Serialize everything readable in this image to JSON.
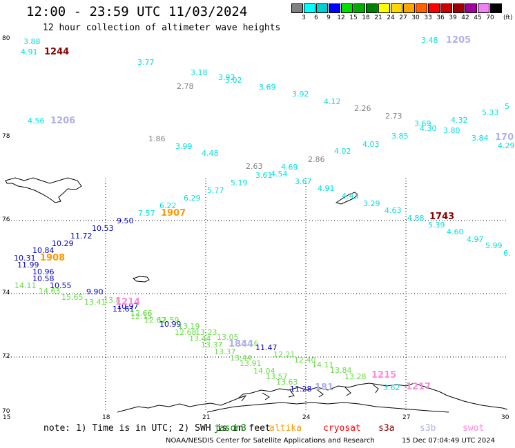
{
  "header": {
    "title": "12:00 - 23:59 UTC 11/03/2024",
    "subtitle": "12 hour collection of altimeter wave heights"
  },
  "color_scale": {
    "unit": "(ft)",
    "labels": [
      "3",
      "6",
      "9",
      "12",
      "15",
      "18",
      "21",
      "24",
      "27",
      "30",
      "33",
      "36",
      "39",
      "42",
      "45",
      "70"
    ],
    "colors": [
      "#808080",
      "#00ffff",
      "#00cdcd",
      "#0000ff",
      "#00dd00",
      "#00aa00",
      "#008000",
      "#ffff00",
      "#ffd700",
      "#ffa500",
      "#ff6000",
      "#ff0000",
      "#cd0000",
      "#a00000",
      "#a000a0",
      "#ee82ee",
      "#000000"
    ]
  },
  "axes": {
    "lat_labels": [
      "80",
      "78",
      "76",
      "74",
      "72",
      "70"
    ],
    "lon_labels": [
      "15",
      "18",
      "21",
      "24",
      "27",
      "30"
    ]
  },
  "observations": [
    {
      "v": "3.88",
      "c": "#00e0e0"
    },
    {
      "v": "4.91",
      "c": "#00e0e0"
    },
    {
      "v": "3.77",
      "c": "#00e0e0"
    },
    {
      "v": "3.18",
      "c": "#00e0e0"
    },
    {
      "v": "3.92",
      "c": "#00e0e0"
    },
    {
      "v": "3.02",
      "c": "#00e0e0"
    },
    {
      "v": "2.78",
      "c": "#808080"
    },
    {
      "v": "3.69",
      "c": "#00e0e0"
    },
    {
      "v": "3.92",
      "c": "#00e0e0"
    },
    {
      "v": "4.12",
      "c": "#00e0e0"
    },
    {
      "v": "2.26",
      "c": "#808080"
    },
    {
      "v": "2.73",
      "c": "#808080"
    },
    {
      "v": "3.48",
      "c": "#00e0e0"
    },
    {
      "v": "3.69",
      "c": "#00e0e0"
    },
    {
      "v": "4.30",
      "c": "#00e0e0"
    },
    {
      "v": "3.80",
      "c": "#00e0e0"
    },
    {
      "v": "4.32",
      "c": "#00e0e0"
    },
    {
      "v": "5.33",
      "c": "#00e0e0"
    },
    {
      "v": "5",
      "c": "#00e0e0"
    },
    {
      "v": "4.56",
      "c": "#00e0e0"
    },
    {
      "v": "1.86",
      "c": "#808080"
    },
    {
      "v": "3.99",
      "c": "#00e0e0"
    },
    {
      "v": "4.48",
      "c": "#00e0e0"
    },
    {
      "v": "4.02",
      "c": "#00e0e0"
    },
    {
      "v": "4.03",
      "c": "#00e0e0"
    },
    {
      "v": "3.85",
      "c": "#00e0e0"
    },
    {
      "v": "3.84",
      "c": "#00e0e0"
    },
    {
      "v": "4.29",
      "c": "#00e0e0"
    },
    {
      "v": "2.63",
      "c": "#808080"
    },
    {
      "v": "2.86",
      "c": "#808080"
    },
    {
      "v": "4.69",
      "c": "#00e0e0"
    },
    {
      "v": "3.61",
      "c": "#00e0e0"
    },
    {
      "v": "4.54",
      "c": "#00e0e0"
    },
    {
      "v": "5.19",
      "c": "#00e0e0"
    },
    {
      "v": "3.67",
      "c": "#00e0e0"
    },
    {
      "v": "5.77",
      "c": "#00e0e0"
    },
    {
      "v": "4.91",
      "c": "#00e0e0"
    },
    {
      "v": "4.43",
      "c": "#00e0e0"
    },
    {
      "v": "6.29",
      "c": "#00e0e0"
    },
    {
      "v": "6.22",
      "c": "#00e0e0"
    },
    {
      "v": "3.29",
      "c": "#00e0e0"
    },
    {
      "v": "7.57",
      "c": "#00e0e0"
    },
    {
      "v": "4.63",
      "c": "#00e0e0"
    },
    {
      "v": "4.88",
      "c": "#00e0e0"
    },
    {
      "v": "5.39",
      "c": "#00e0e0"
    },
    {
      "v": "4.60",
      "c": "#00e0e0"
    },
    {
      "v": "4.97",
      "c": "#00e0e0"
    },
    {
      "v": "5.99",
      "c": "#00e0e0"
    },
    {
      "v": "6.",
      "c": "#00e0e0"
    },
    {
      "v": "9.50",
      "c": "#0000cc"
    },
    {
      "v": "10.53",
      "c": "#0000cc"
    },
    {
      "v": "11.72",
      "c": "#0000cc"
    },
    {
      "v": "10.29",
      "c": "#0000cc"
    },
    {
      "v": "10.84",
      "c": "#0000cc"
    },
    {
      "v": "10.31",
      "c": "#0000cc"
    },
    {
      "v": "11.99",
      "c": "#0000cc"
    },
    {
      "v": "10.96",
      "c": "#0000cc"
    },
    {
      "v": "10.58",
      "c": "#0000cc"
    },
    {
      "v": "10.55",
      "c": "#0000cc"
    },
    {
      "v": "9.90",
      "c": "#0000cc"
    },
    {
      "v": "14.11",
      "c": "#66dd44"
    },
    {
      "v": "14.63",
      "c": "#66dd44"
    },
    {
      "v": "15.65",
      "c": "#66dd44"
    },
    {
      "v": "13.41",
      "c": "#66dd44"
    },
    {
      "v": "13.8",
      "c": "#66dd44"
    },
    {
      "v": "10.97",
      "c": "#0000cc"
    },
    {
      "v": "11.61",
      "c": "#0000cc"
    },
    {
      "v": "12.66",
      "c": "#66dd44"
    },
    {
      "v": "12.15",
      "c": "#66dd44"
    },
    {
      "v": "12.62",
      "c": "#66dd44"
    },
    {
      "v": "12.59",
      "c": "#66dd44"
    },
    {
      "v": "10.99",
      "c": "#0000cc"
    },
    {
      "v": "13.19",
      "c": "#66dd44"
    },
    {
      "v": "12.68",
      "c": "#66dd44"
    },
    {
      "v": "13.23",
      "c": "#66dd44"
    },
    {
      "v": "13.44",
      "c": "#66dd44"
    },
    {
      "v": "13.05",
      "c": "#66dd44"
    },
    {
      "v": "13.37",
      "c": "#66dd44"
    },
    {
      "v": "13.16",
      "c": "#66dd44"
    },
    {
      "v": "11.47",
      "c": "#0000cc"
    },
    {
      "v": "13.37",
      "c": "#66dd44"
    },
    {
      "v": "12.21",
      "c": "#66dd44"
    },
    {
      "v": "13.44",
      "c": "#66dd44"
    },
    {
      "v": "12.40",
      "c": "#66dd44"
    },
    {
      "v": "13.91",
      "c": "#66dd44"
    },
    {
      "v": "14.11",
      "c": "#66dd44"
    },
    {
      "v": "14.04",
      "c": "#66dd44"
    },
    {
      "v": "13.84",
      "c": "#66dd44"
    },
    {
      "v": "13.57",
      "c": "#66dd44"
    },
    {
      "v": "13.28",
      "c": "#66dd44"
    },
    {
      "v": "13.63",
      "c": "#66dd44"
    },
    {
      "v": "11.28",
      "c": "#0000cc"
    },
    {
      "v": "3.62",
      "c": "#00e0e0"
    }
  ],
  "satellite_ids": [
    {
      "v": "1244",
      "c": "#8b0000"
    },
    {
      "v": "1205",
      "c": "#b0b0ee"
    },
    {
      "v": "1206",
      "c": "#b0b0ee"
    },
    {
      "v": "170",
      "c": "#b0b0ee"
    },
    {
      "v": "1907",
      "c": "#ff9900"
    },
    {
      "v": "1743",
      "c": "#8b0000"
    },
    {
      "v": "1908",
      "c": "#ff9900"
    },
    {
      "v": "1214",
      "c": "#ff88dd"
    },
    {
      "v": "1844",
      "c": "#b0b0ee"
    },
    {
      "v": "1215",
      "c": "#ff88dd"
    },
    {
      "v": "181",
      "c": "#b0b0ee"
    },
    {
      "v": "1217",
      "c": "#ff88dd"
    }
  ],
  "footer": {
    "note": "note: 1) Time is in UTC; 2) SWH is in feet",
    "legend": [
      {
        "name": "jason3",
        "c": "#008000"
      },
      {
        "name": "altika",
        "c": "#ff9900"
      },
      {
        "name": "cryosat",
        "c": "#ff0000"
      },
      {
        "name": "s3a",
        "c": "#8b0000"
      },
      {
        "name": "s3b",
        "c": "#b0b0ee"
      },
      {
        "name": "swot",
        "c": "#ff88dd"
      }
    ],
    "credit": "NOAA/NESDIS Center for Satellite Applications and Research",
    "timestamp": "15 Dec 07:04:49 UTC 2024"
  }
}
